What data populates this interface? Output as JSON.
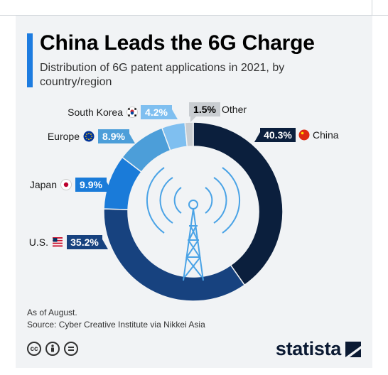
{
  "title": "China Leads the 6G Charge",
  "subtitle": "Distribution of 6G patent applications in 2021, by country/region",
  "footnotes": [
    "As of August.",
    "Source: Cyber Creative Institute via Nikkei Asia"
  ],
  "brand": "statista",
  "icons": [
    "creative-commons-icon",
    "attribution-icon",
    "no-derivatives-icon",
    "tower-icon",
    "flag-icons"
  ],
  "chart_data": {
    "type": "pie",
    "variant": "donut",
    "slices": [
      {
        "name": "China",
        "value": 40.3,
        "label": "40.3%",
        "color": "#0b1f3d",
        "flag": "china"
      },
      {
        "name": "U.S.",
        "value": 35.2,
        "label": "35.2%",
        "color": "#17427f",
        "flag": "us"
      },
      {
        "name": "Japan",
        "value": 9.9,
        "label": "9.9%",
        "color": "#1a7bd9",
        "flag": "japan"
      },
      {
        "name": "Europe",
        "value": 8.9,
        "label": "8.9%",
        "color": "#4c9ed9",
        "flag": "europe"
      },
      {
        "name": "South Korea",
        "value": 4.2,
        "label": "4.2%",
        "color": "#7fbff0",
        "flag": "south-korea"
      },
      {
        "name": "Other",
        "value": 1.5,
        "label": "1.5%",
        "color": "#c9cdd1",
        "flag": null
      }
    ]
  }
}
